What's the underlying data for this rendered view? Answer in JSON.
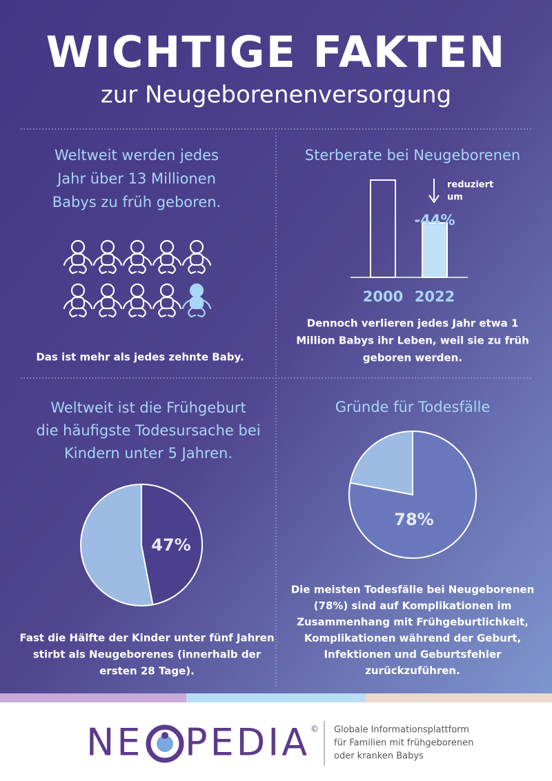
{
  "header": {
    "title": "WICHTIGE FAKTEN",
    "subtitle": "zur Neugeborenenversorgung"
  },
  "sections": [
    {
      "title": [
        "Weltweit werden jedes",
        "Jahr über 13 Millionen",
        "Babys zu früh geboren."
      ],
      "text": [
        "Das ist mehr als jedes zehnte Baby."
      ]
    },
    {
      "title": [
        "Sterberate bei Neugeborenen"
      ],
      "categories": [
        "2000",
        "2022"
      ],
      "annotation": [
        "reduziert",
        "um"
      ],
      "change": -44,
      "change_label": "-44%",
      "text": [
        "Dennoch verlieren jedes Jahr etwa 1",
        "Million Babys ihr Leben, weil sie zu früh",
        "geboren werden."
      ]
    },
    {
      "title": [
        "Weltweit ist die Frühgeburt",
        "die häufigste Todesursache bei",
        "Kindern unter 5 Jahren."
      ],
      "value": 47,
      "value_label": "47%",
      "text": [
        "Fast die Hälfte der Kinder unter fünf Jahren",
        "stirbt als Neugeborenes (innerhalb der",
        "ersten 28 Tage)."
      ]
    },
    {
      "title": [
        "Gründe für Todesfälle"
      ],
      "value": 78,
      "value_label": "78%",
      "text": [
        "Die meisten Todesfälle bei Neugeborenen",
        "(78%) sind auf Komplikationen im",
        "Zusammenhang mit Frühgeburtlichkeit,",
        "Komplikationen während der Geburt,",
        "Infektionen und Geburtsfehler",
        "zurückzuführen."
      ]
    }
  ],
  "footer": {
    "logo": [
      "NE",
      "PEDIA"
    ],
    "copyright": "©",
    "tagline": [
      "Globale Informationsplattform",
      "für Familien mit frühgeborenen",
      "oder kranken Babys"
    ]
  }
}
